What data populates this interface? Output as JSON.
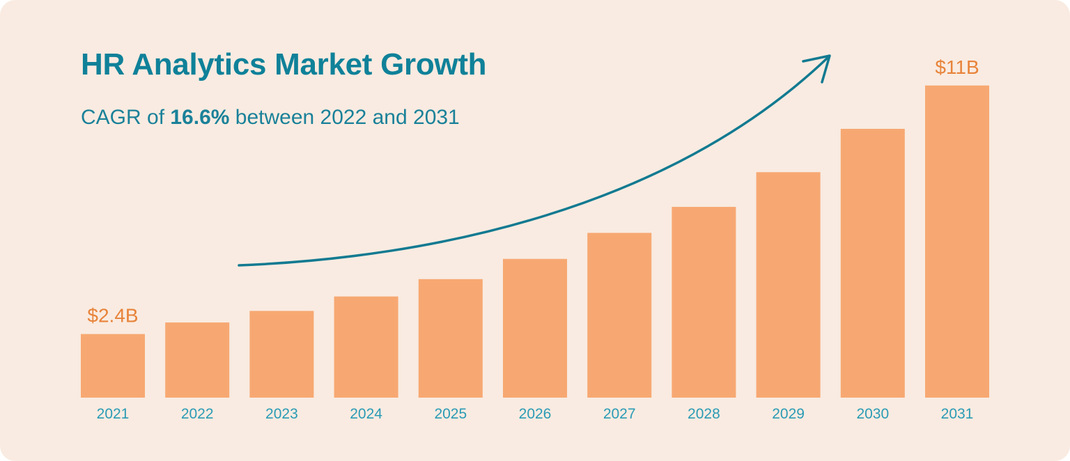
{
  "chart_data": {
    "type": "bar",
    "title": "HR Analytics Market Growth",
    "subtitle": {
      "prefix": "CAGR of ",
      "highlight": "16.6%",
      "suffix": " between 2022 and 2031"
    },
    "categories": [
      "2021",
      "2022",
      "2023",
      "2024",
      "2025",
      "2026",
      "2027",
      "2028",
      "2029",
      "2030",
      "2031"
    ],
    "values": [
      2.4,
      2.8,
      3.2,
      3.7,
      4.3,
      5.0,
      5.9,
      6.8,
      8.0,
      9.5,
      11.0
    ],
    "unit": "$B",
    "data_labels": [
      {
        "category": "2021",
        "text": "$2.4B"
      },
      {
        "category": "2031",
        "text": "$11B"
      }
    ],
    "xlabel": "",
    "ylabel": "",
    "ylim": [
      0.2,
      11.5
    ],
    "grid": false,
    "trend_arrow": true,
    "colors": {
      "background": "#f9ebe1",
      "bar": "#f7a872",
      "title": "#0f8199",
      "data_label": "#e8833a",
      "tick_label": "#2a9bb5",
      "arrow": "#127a91"
    }
  }
}
